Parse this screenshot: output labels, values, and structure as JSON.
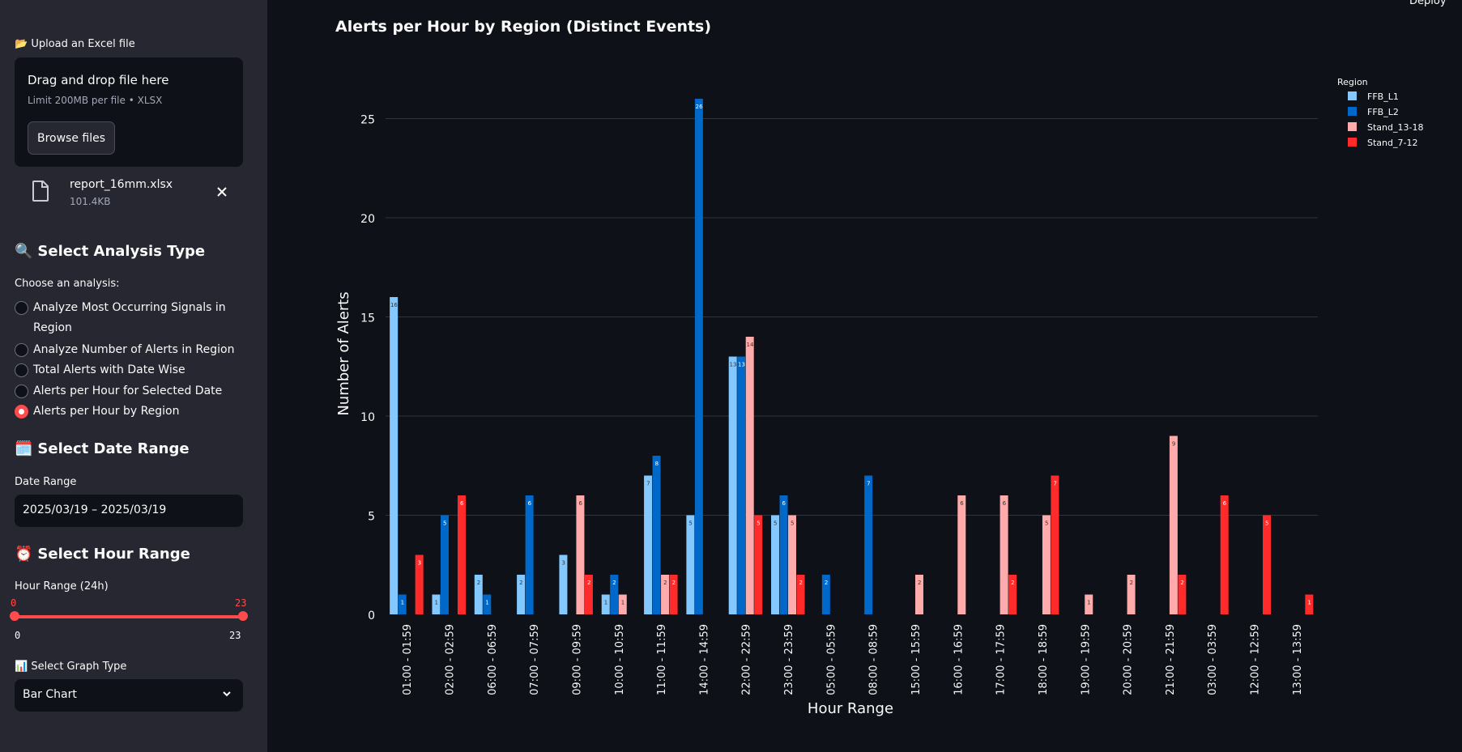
{
  "header": {
    "deploy_label": "Deploy"
  },
  "sidebar": {
    "upload": {
      "label": "📂 Upload an Excel file",
      "drop_title": "Drag and drop file here",
      "drop_limit": "Limit 200MB per file • XLSX",
      "browse_label": "Browse files",
      "file_name": "report_16mm.xlsx",
      "file_size": "101.4KB",
      "file_icon": "file-icon",
      "close_icon": "close-icon"
    },
    "analysis": {
      "heading": "Select Analysis Type",
      "heading_emoji": "🔍",
      "prompt": "Choose an analysis:",
      "options": [
        "Analyze Most Occurring Signals in Region",
        "Analyze Number of Alerts in Region",
        "Total Alerts with Date Wise",
        "Alerts per Hour for Selected Date",
        "Alerts per Hour by Region"
      ],
      "selected_index": 4
    },
    "date_range": {
      "heading": "Select Date Range",
      "heading_emoji": "🗓️",
      "label": "Date Range",
      "value": "2025/03/19 – 2025/03/19"
    },
    "hour_range": {
      "heading": "Select Hour Range",
      "heading_emoji": "⏰",
      "label": "Hour Range (24h)",
      "value_low": "0",
      "value_high": "23",
      "min_label": "0",
      "max_label": "23"
    },
    "graph_type": {
      "label": "📊 Select Graph Type",
      "value": "Bar Chart",
      "icon": "chevron-down-icon"
    }
  },
  "colors": {
    "accent": "#ff4b4b",
    "background": "#0e1117",
    "sidebar": "#262730"
  },
  "chart_data": {
    "type": "bar",
    "title": "Alerts per Hour by Region (Distinct Events)",
    "xlabel": "Hour Range",
    "ylabel": "Number of Alerts",
    "ylim": [
      0,
      27
    ],
    "yticks": [
      0,
      5,
      10,
      15,
      20,
      25
    ],
    "grid": true,
    "legend_title": "Region",
    "legend_position": "top-right",
    "categories": [
      "01:00 - 01:59",
      "02:00 - 02:59",
      "06:00 - 06:59",
      "07:00 - 07:59",
      "09:00 - 09:59",
      "10:00 - 10:59",
      "11:00 - 11:59",
      "14:00 - 14:59",
      "22:00 - 22:59",
      "23:00 - 23:59",
      "05:00 - 05:59",
      "08:00 - 08:59",
      "15:00 - 15:59",
      "16:00 - 16:59",
      "17:00 - 17:59",
      "18:00 - 18:59",
      "19:00 - 19:59",
      "20:00 - 20:59",
      "21:00 - 21:59",
      "03:00 - 03:59",
      "12:00 - 12:59",
      "13:00 - 13:59"
    ],
    "series": [
      {
        "name": "FFB_L1",
        "color": "#83c9ff",
        "values": [
          16,
          1,
          2,
          2,
          3,
          1,
          7,
          5,
          13,
          5,
          null,
          null,
          null,
          null,
          null,
          null,
          null,
          null,
          null,
          null,
          null,
          null
        ]
      },
      {
        "name": "FFB_L2",
        "color": "#0068c9",
        "values": [
          1,
          5,
          1,
          6,
          null,
          2,
          8,
          26,
          13,
          6,
          2,
          7,
          null,
          null,
          null,
          null,
          null,
          null,
          null,
          null,
          null,
          null
        ]
      },
      {
        "name": "Stand_13-18",
        "color": "#ffabab",
        "values": [
          null,
          null,
          null,
          null,
          6,
          1,
          2,
          null,
          14,
          5,
          null,
          null,
          2,
          6,
          6,
          5,
          1,
          2,
          9,
          null,
          null,
          null
        ]
      },
      {
        "name": "Stand_7-12",
        "color": "#ff2b2b",
        "values": [
          3,
          6,
          null,
          null,
          2,
          null,
          2,
          null,
          5,
          2,
          null,
          null,
          null,
          null,
          2,
          7,
          null,
          null,
          2,
          6,
          5,
          1
        ]
      }
    ]
  }
}
